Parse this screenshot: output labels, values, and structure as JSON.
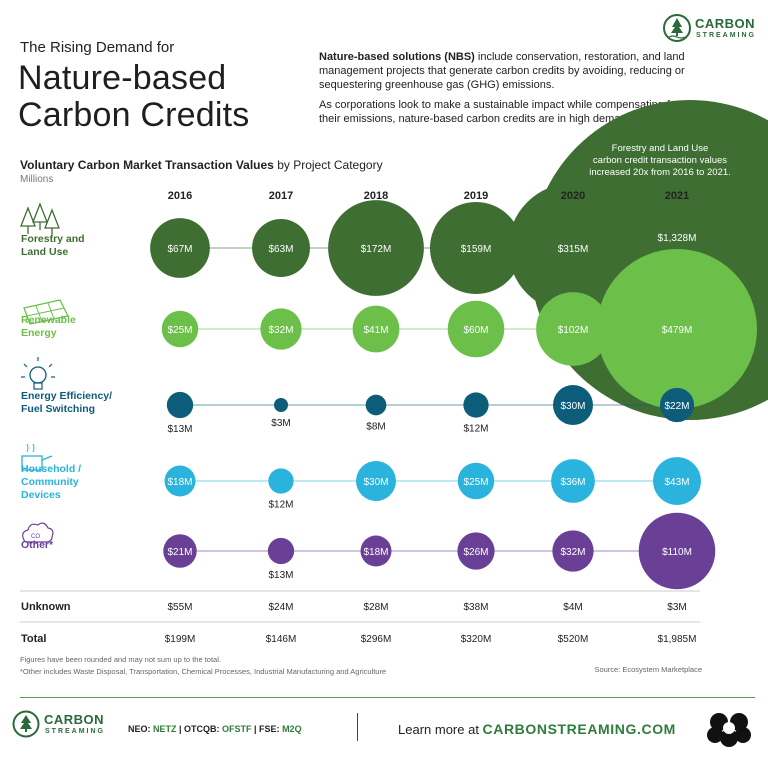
{
  "header": {
    "pretitle": "The Rising Demand for",
    "title_line1": "Nature-based",
    "title_line2": "Carbon Credits",
    "intro_bold": "Nature-based solutions (NBS)",
    "intro_rest": " include conservation, restoration, and land management projects that generate carbon credits by avoiding, reducing or sequestering greenhouse gas (GHG) emissions.",
    "intro2": "As corporations look to make a sustainable impact while compensating for their emissions, nature-based carbon credits are in high demand.",
    "brand_name": "CARBON",
    "brand_sub": "STREAMING"
  },
  "chart_data": {
    "type": "bubble",
    "title_bold": "Voluntary Carbon Market Transaction Values",
    "title_rest": " by Project Category",
    "units": "Millions",
    "years": [
      "2016",
      "2017",
      "2018",
      "2019",
      "2020",
      "2021"
    ],
    "series": [
      {
        "name": "Forestry and Land Use",
        "color": "#3e6e32",
        "values": [
          67,
          63,
          172,
          159,
          315,
          1328
        ],
        "labels": [
          "$67M",
          "$63M",
          "$172M",
          "$159M",
          "$315M",
          "$1,328M"
        ]
      },
      {
        "name": "Renewable Energy",
        "color": "#6cc04a",
        "values": [
          25,
          32,
          41,
          60,
          102,
          479
        ],
        "labels": [
          "$25M",
          "$32M",
          "$41M",
          "$60M",
          "$102M",
          "$479M"
        ]
      },
      {
        "name": "Energy Efficiency/ Fuel Switching",
        "color": "#0d5c7a",
        "values": [
          13,
          3,
          8,
          12,
          30,
          22
        ],
        "labels": [
          "$13M",
          "$3M",
          "$8M",
          "$12M",
          "$30M",
          "$22M"
        ]
      },
      {
        "name": "Household / Community Devices",
        "color": "#29b3dd",
        "values": [
          18,
          12,
          30,
          25,
          36,
          43
        ],
        "labels": [
          "$18M",
          "$12M",
          "$30M",
          "$25M",
          "$36M",
          "$43M"
        ]
      },
      {
        "name": "Other*",
        "color": "#6a3f96",
        "values": [
          21,
          13,
          18,
          26,
          32,
          110
        ],
        "labels": [
          "$21M",
          "$13M",
          "$18M",
          "$26M",
          "$32M",
          "$110M"
        ]
      }
    ],
    "unknown": {
      "name": "Unknown",
      "labels": [
        "$55M",
        "$24M",
        "$28M",
        "$38M",
        "$4M",
        "$3M"
      ]
    },
    "total": {
      "name": "Total",
      "labels": [
        "$199M",
        "$146M",
        "$296M",
        "$320M",
        "$520M",
        "$1,985M"
      ]
    },
    "callout_pre": "Forestry and Land Use carbon credit transaction values increased ",
    "callout_bold": "20x",
    "callout_post": " from 2016 to 2021."
  },
  "footer": {
    "note1": "Figures have been rounded and may not sum up to the total.",
    "note2": "*Other includes Waste Disposal, Transportation, Chemical Processes, Industrial Manufacturing and Agriculture",
    "source": "Source: Ecosystem Marketplace",
    "ticker_neo_label": "NEO: ",
    "ticker_neo": "NETZ",
    "ticker_otc_label": " | OTCQB: ",
    "ticker_otc": "OFSTF",
    "ticker_fse_label": " | FSE: ",
    "ticker_fse": "M2Q",
    "learn_label": "Learn more at ",
    "learn_url": "CARBONSTREAMING.COM"
  },
  "colors": {
    "brand_green": "#2e7d3a"
  }
}
